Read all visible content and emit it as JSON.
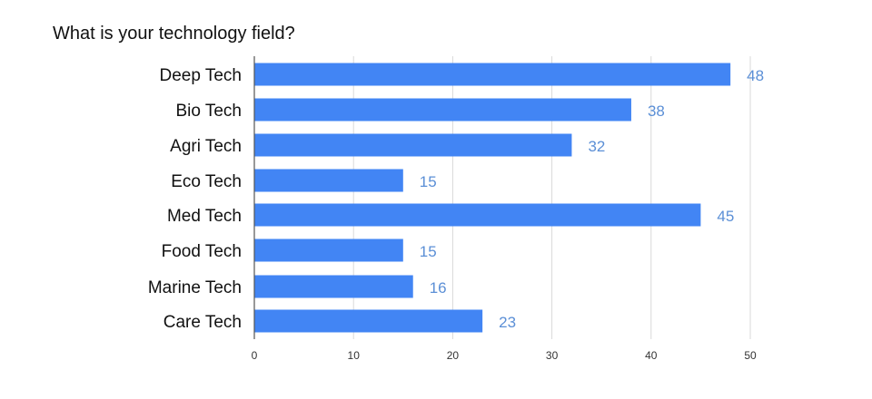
{
  "chart_data": {
    "type": "bar",
    "orientation": "horizontal",
    "title": "What is your technology field?",
    "xlabel": "",
    "ylabel": "",
    "categories": [
      "Deep Tech",
      "Bio Tech",
      "Agri Tech",
      "Eco Tech",
      "Med Tech",
      "Food Tech",
      "Marine Tech",
      "Care Tech"
    ],
    "values": [
      48,
      38,
      32,
      15,
      45,
      15,
      16,
      23
    ],
    "xlim": [
      0,
      50
    ],
    "xticks": [
      0,
      10,
      20,
      30,
      40,
      50
    ],
    "grid": true,
    "legend": "none",
    "bar_color": "#4285f4",
    "label_color": "#5b8fd6"
  }
}
